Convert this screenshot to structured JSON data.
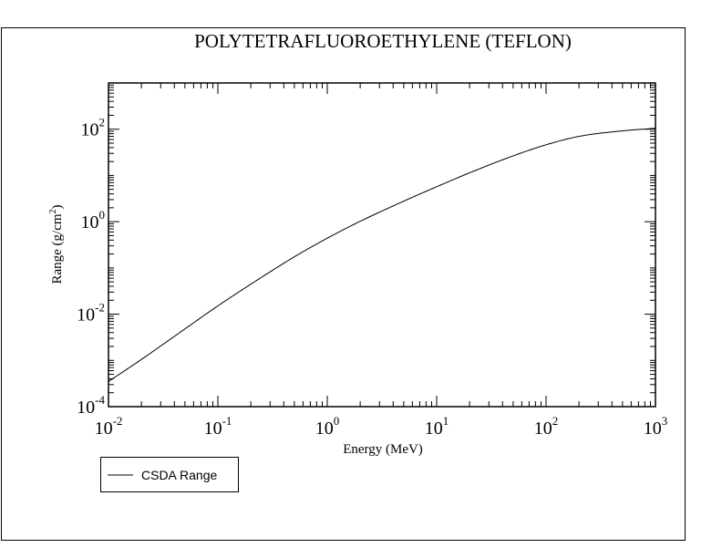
{
  "chart_data": {
    "type": "line",
    "title": "POLYTETRAFLUOROETHYLENE (TEFLON)",
    "xlabel": "Energy (MeV)",
    "ylabel": "Range (g/cm²)",
    "ylabel_parts": {
      "main": "Range (g/cm",
      "sup": "2",
      "tail": ")"
    },
    "x_scale": "log",
    "y_scale": "log",
    "xlim": [
      0.01,
      1000
    ],
    "ylim": [
      0.0001,
      1000
    ],
    "x_ticks": [
      {
        "value": 0.01,
        "base": "10",
        "exp": "-2"
      },
      {
        "value": 0.1,
        "base": "10",
        "exp": "-1"
      },
      {
        "value": 1,
        "base": "10",
        "exp": "0"
      },
      {
        "value": 10,
        "base": "10",
        "exp": "1"
      },
      {
        "value": 100,
        "base": "10",
        "exp": "2"
      },
      {
        "value": 1000,
        "base": "10",
        "exp": "3"
      }
    ],
    "y_ticks": [
      {
        "value": 0.0001,
        "base": "10",
        "exp": "-4"
      },
      {
        "value": 0.01,
        "base": "10",
        "exp": "-2"
      },
      {
        "value": 1,
        "base": "10",
        "exp": "0"
      },
      {
        "value": 100,
        "base": "10",
        "exp": "2"
      }
    ],
    "grid": false,
    "legend_position": "bottom-left, below plot",
    "series": [
      {
        "name": "CSDA Range",
        "color": "#000000",
        "x": [
          0.01,
          0.02,
          0.05,
          0.1,
          0.2,
          0.5,
          1,
          2,
          5,
          10,
          20,
          50,
          100,
          200,
          500,
          1000
        ],
        "y": [
          0.00035,
          0.00105,
          0.0048,
          0.0151,
          0.0445,
          0.174,
          0.44,
          1.02,
          2.78,
          5.7,
          11.4,
          26.5,
          46.0,
          70.0,
          92.0,
          105.0
        ]
      }
    ]
  }
}
